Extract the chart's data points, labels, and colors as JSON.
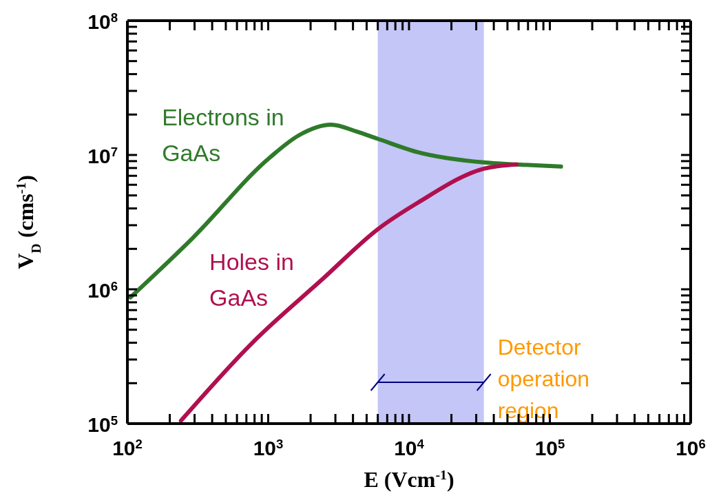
{
  "chart_data": {
    "type": "line",
    "xlabel": "E (Vcm$^{-1}$)",
    "ylabel": "V$_{D}$ (cms$^{-1}$)",
    "log": "xy",
    "marker": "none",
    "line_style": "solid",
    "xlim": [
      100,
      1000000
    ],
    "ylim": [
      100000,
      100000000
    ],
    "xticks": [
      {
        "value": 100,
        "label": "10$^{2}$"
      },
      {
        "value": 200,
        "label": null
      },
      {
        "value": 300,
        "label": null
      },
      {
        "value": 400,
        "label": null
      },
      {
        "value": 500,
        "label": null
      },
      {
        "value": 600,
        "label": null
      },
      {
        "value": 700,
        "label": null
      },
      {
        "value": 800,
        "label": null
      },
      {
        "value": 900,
        "label": null
      },
      {
        "value": 1000,
        "label": "10$^{3}$"
      },
      {
        "value": 2000,
        "label": null
      },
      {
        "value": 3000,
        "label": null
      },
      {
        "value": 4000,
        "label": null
      },
      {
        "value": 5000,
        "label": null
      },
      {
        "value": 6000,
        "label": null
      },
      {
        "value": 7000,
        "label": null
      },
      {
        "value": 8000,
        "label": null
      },
      {
        "value": 9000,
        "label": null
      },
      {
        "value": 10000,
        "label": "10$^{4}$"
      },
      {
        "value": 20000,
        "label": null
      },
      {
        "value": 30000,
        "label": null
      },
      {
        "value": 40000,
        "label": null
      },
      {
        "value": 50000,
        "label": null
      },
      {
        "value": 60000,
        "label": null
      },
      {
        "value": 70000,
        "label": null
      },
      {
        "value": 80000,
        "label": null
      },
      {
        "value": 90000,
        "label": null
      },
      {
        "value": 100000,
        "label": "10$^{5}$"
      },
      {
        "value": 200000,
        "label": null
      },
      {
        "value": 300000,
        "label": null
      },
      {
        "value": 400000,
        "label": null
      },
      {
        "value": 500000,
        "label": null
      },
      {
        "value": 600000,
        "label": null
      },
      {
        "value": 700000,
        "label": null
      },
      {
        "value": 800000,
        "label": null
      },
      {
        "value": 900000,
        "label": null
      },
      {
        "value": 1000000,
        "label": "10$^{6}$"
      }
    ],
    "yticks": [
      {
        "value": 100000,
        "label": "10$^{5}$"
      },
      {
        "value": 200000,
        "label": null
      },
      {
        "value": 300000,
        "label": null
      },
      {
        "value": 400000,
        "label": null
      },
      {
        "value": 500000,
        "label": null
      },
      {
        "value": 600000,
        "label": null
      },
      {
        "value": 700000,
        "label": null
      },
      {
        "value": 800000,
        "label": null
      },
      {
        "value": 900000,
        "label": null
      },
      {
        "value": 1000000,
        "label": "10$^{6}$"
      },
      {
        "value": 2000000,
        "label": null
      },
      {
        "value": 3000000,
        "label": null
      },
      {
        "value": 4000000,
        "label": null
      },
      {
        "value": 5000000,
        "label": null
      },
      {
        "value": 6000000,
        "label": null
      },
      {
        "value": 7000000,
        "label": null
      },
      {
        "value": 8000000,
        "label": null
      },
      {
        "value": 9000000,
        "label": null
      },
      {
        "value": 10000000,
        "label": "10$^{7}$"
      },
      {
        "value": 20000000,
        "label": null
      },
      {
        "value": 30000000,
        "label": null
      },
      {
        "value": 40000000,
        "label": null
      },
      {
        "value": 50000000,
        "label": null
      },
      {
        "value": 60000000,
        "label": null
      },
      {
        "value": 70000000,
        "label": null
      },
      {
        "value": 80000000,
        "label": null
      },
      {
        "value": 90000000,
        "label": null
      },
      {
        "value": 100000000,
        "label": "10$^{8}$"
      }
    ],
    "series": [
      {
        "name": "Electrons in GaAs",
        "color": "#2f7a2a",
        "x": [
          105,
          290,
          1030,
          1650,
          2800,
          4200,
          6000,
          11500,
          34000,
          58000,
          120000
        ],
        "values": [
          870000,
          2400000,
          9600000,
          14000000,
          16800000,
          15000000,
          13200000,
          10500000,
          8800000,
          8500000,
          8200000
        ]
      },
      {
        "name": "Holes in GaAs",
        "color": "#b0104f",
        "x": [
          240,
          790,
          2450,
          6000,
          11500,
          34000,
          58000
        ],
        "values": [
          105000,
          410000,
          1200000,
          2800000,
          4400000,
          7900000,
          8500000
        ]
      }
    ],
    "bands": [
      {
        "axis": "x",
        "from": 6000,
        "to": 34000,
        "label": "Detector operation region",
        "color": "#b8bcf5"
      }
    ]
  }
}
